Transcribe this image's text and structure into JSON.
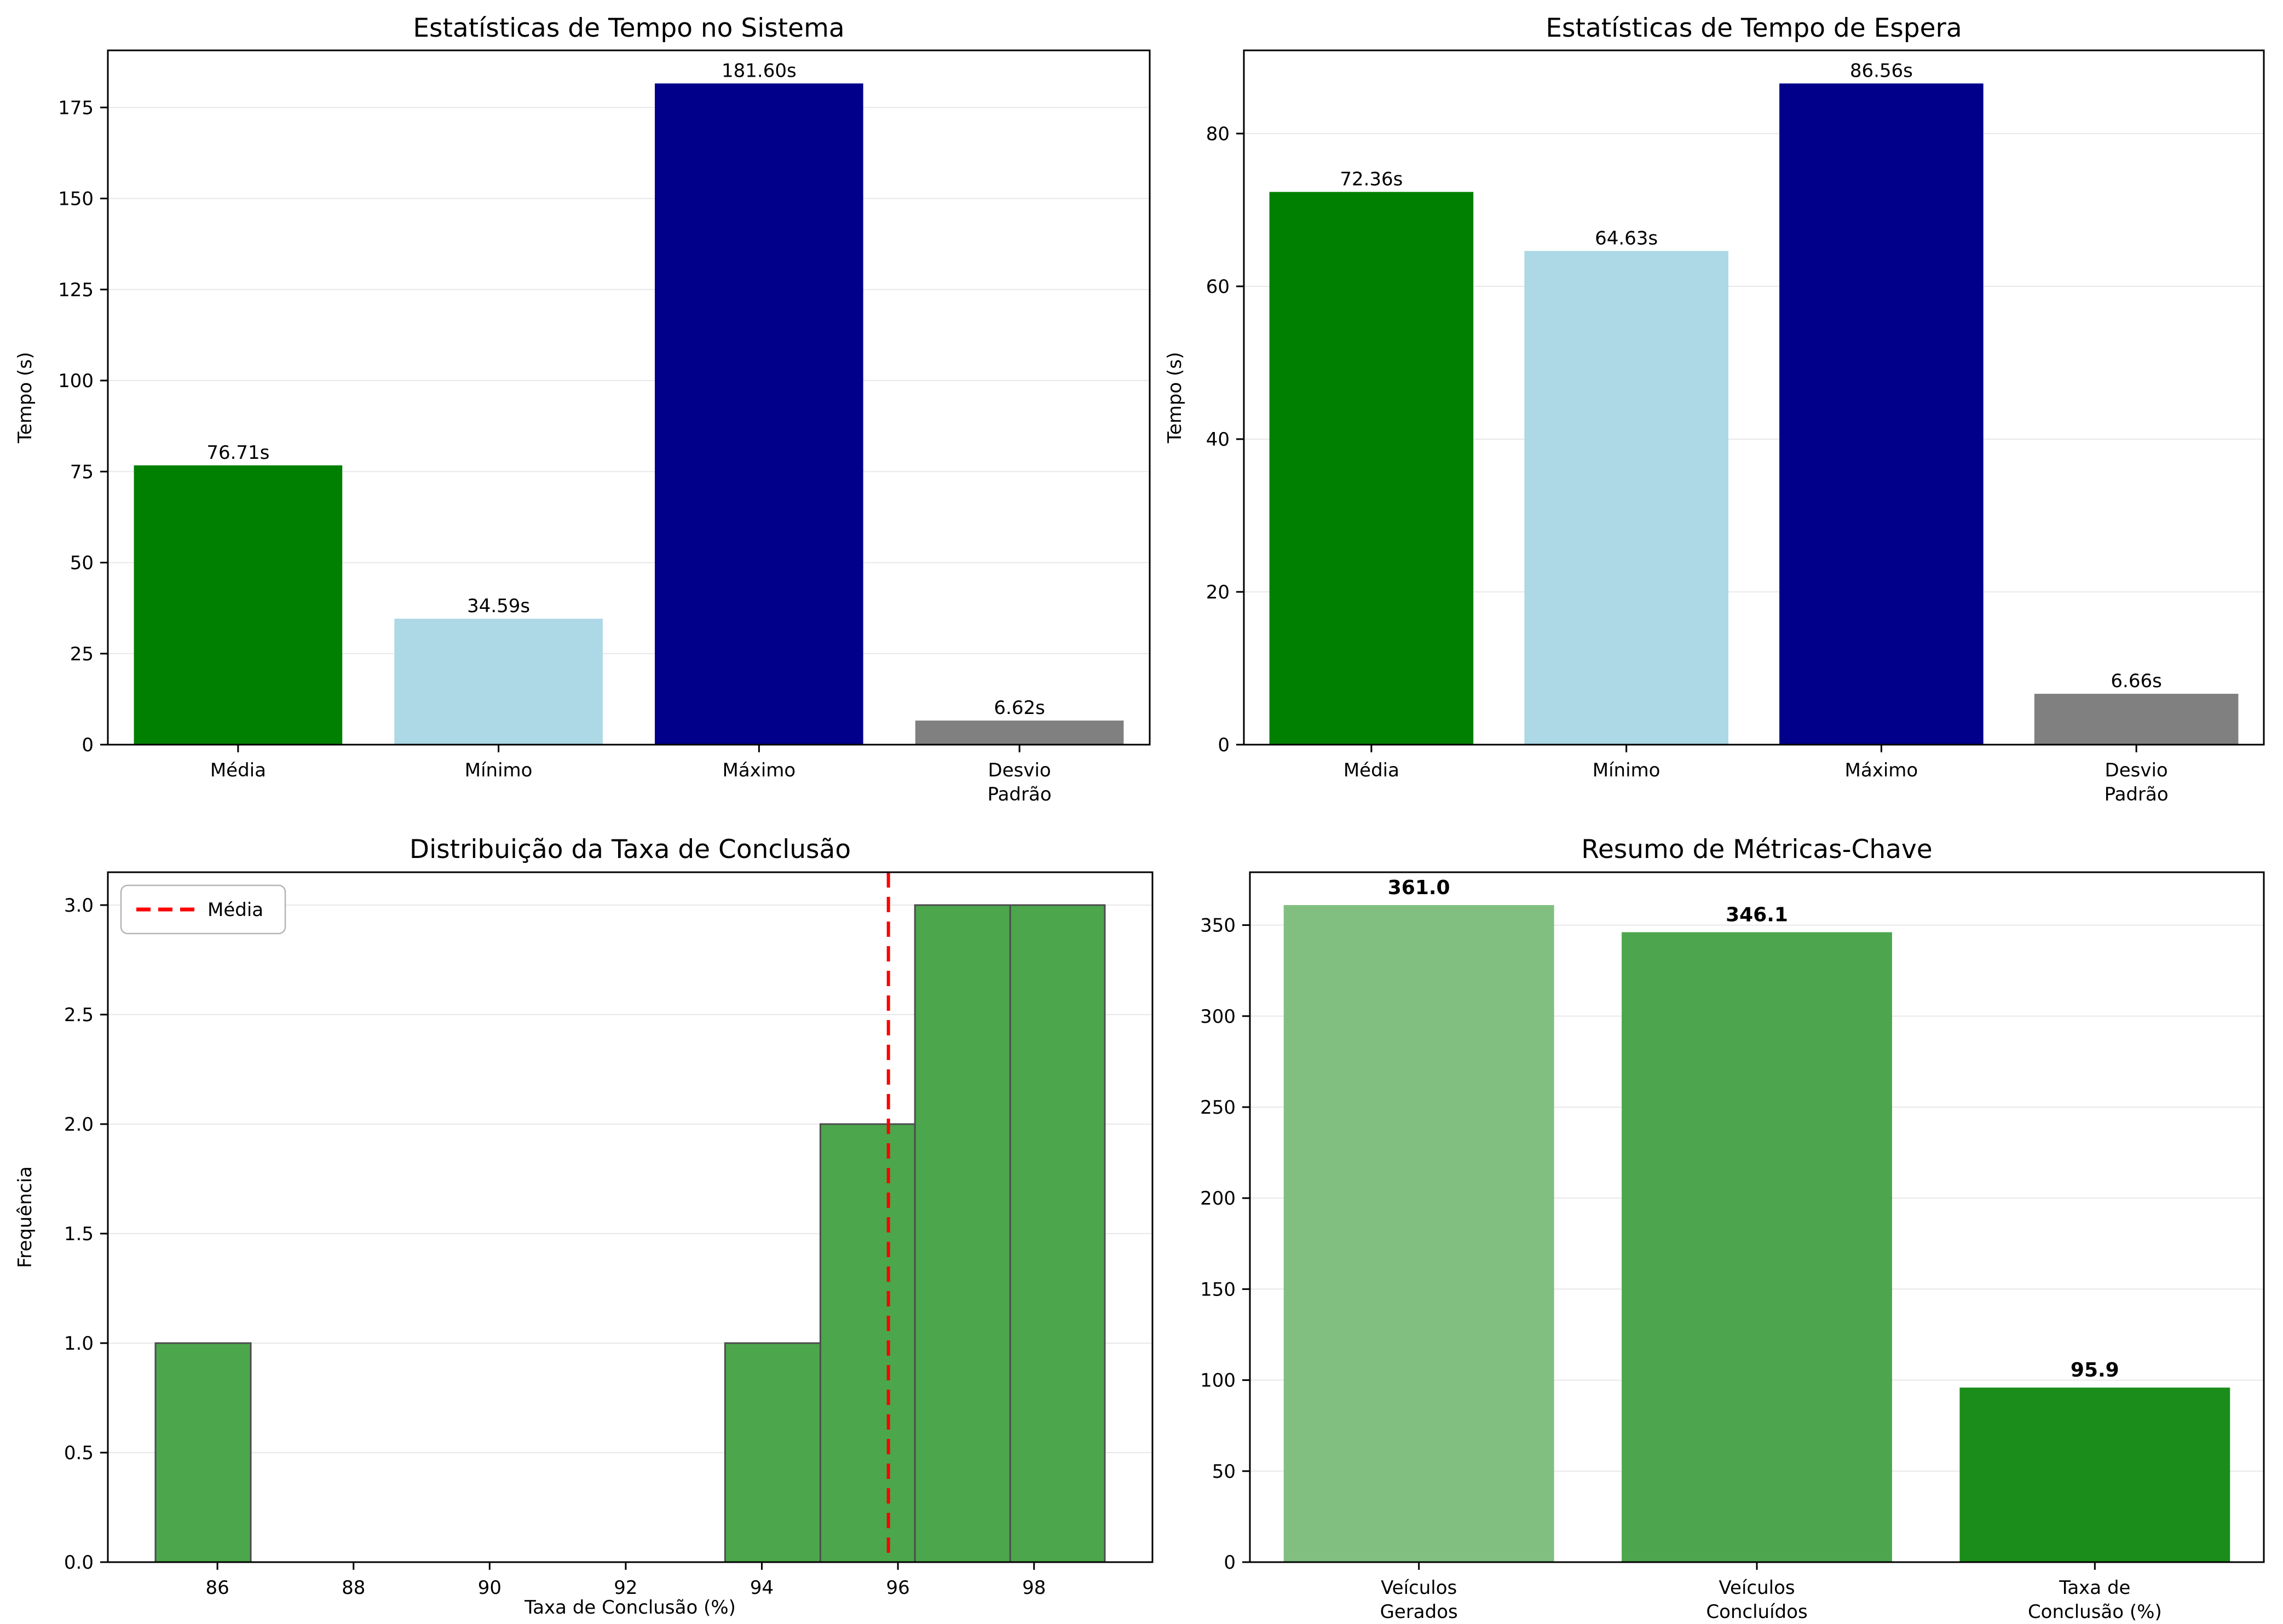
{
  "figure": {
    "background": "#FFFFFF",
    "text_color": "#000000",
    "grid_color": "#E8E8E8",
    "spine_color": "#000000"
  },
  "chart_data": [
    {
      "type": "bar",
      "title": "Estatísticas de Tempo no Sistema",
      "ylabel": "Tempo (s)",
      "categories": [
        "Média",
        "Mínimo",
        "Máximo",
        "Desvio\nPadrão"
      ],
      "values": [
        76.71,
        34.59,
        181.6,
        6.62
      ],
      "value_labels": [
        "76.71s",
        "34.59s",
        "181.60s",
        "6.62s"
      ],
      "bar_colors": [
        "#008000",
        "#ADD8E6",
        "#00008B",
        "#808080"
      ],
      "yticks": [
        0,
        25,
        50,
        75,
        100,
        125,
        150,
        175
      ],
      "ytick_labels": [
        "0",
        "25",
        "50",
        "75",
        "100",
        "125",
        "150",
        "175"
      ],
      "ylim": [
        0,
        190.68
      ],
      "grid": true,
      "value_label_bold": false,
      "legend": null
    },
    {
      "type": "bar",
      "title": "Estatísticas de Tempo de Espera",
      "ylabel": "Tempo (s)",
      "categories": [
        "Média",
        "Mínimo",
        "Máximo",
        "Desvio\nPadrão"
      ],
      "values": [
        72.36,
        64.63,
        86.56,
        6.66
      ],
      "value_labels": [
        "72.36s",
        "64.63s",
        "86.56s",
        "6.66s"
      ],
      "bar_colors": [
        "#008000",
        "#ADD8E6",
        "#00008B",
        "#808080"
      ],
      "yticks": [
        0,
        20,
        40,
        60,
        80
      ],
      "ytick_labels": [
        "0",
        "20",
        "40",
        "60",
        "80"
      ],
      "ylim": [
        0,
        90.89
      ],
      "grid": true,
      "value_label_bold": false,
      "legend": null
    },
    {
      "type": "histogram",
      "title": "Distribuição da Taxa de Conclusão",
      "xlabel": "Taxa de Conclusão (%)",
      "ylabel": "Frequência",
      "bin_edges": [
        85.09,
        86.49,
        87.88,
        89.28,
        90.67,
        92.07,
        93.46,
        94.86,
        96.25,
        97.65,
        99.04
      ],
      "counts": [
        1,
        0,
        0,
        0,
        0,
        0,
        1,
        2,
        3,
        3
      ],
      "bar_color": "#4CA64C",
      "bar_edge_color": "#4D4D4D",
      "mean_line": {
        "value": 95.86,
        "color": "#FF0000",
        "legend_label": "Média"
      },
      "xticks": [
        86,
        88,
        90,
        92,
        94,
        96,
        98
      ],
      "xtick_labels": [
        "86",
        "88",
        "90",
        "92",
        "94",
        "96",
        "98"
      ],
      "yticks": [
        0,
        0.5,
        1,
        1.5,
        2,
        2.5,
        3
      ],
      "ytick_labels": [
        "0.0",
        "0.5",
        "1.0",
        "1.5",
        "2.0",
        "2.5",
        "3.0"
      ],
      "xlim": [
        84.39,
        99.74
      ],
      "ylim": [
        0,
        3.15
      ],
      "grid": true
    },
    {
      "type": "bar",
      "title": "Resumo de Métricas-Chave",
      "ylabel": "",
      "categories": [
        "Veículos\nGerados",
        "Veículos\nConcluídos",
        "Taxa de\nConclusão (%)"
      ],
      "values": [
        361.0,
        346.1,
        95.9
      ],
      "value_labels": [
        "361.0",
        "346.1",
        "95.9"
      ],
      "bar_colors": [
        "#80BF80",
        "#4DA64D",
        "#1A8D1A"
      ],
      "yticks": [
        0,
        50,
        100,
        150,
        200,
        250,
        300,
        350
      ],
      "ytick_labels": [
        "0",
        "50",
        "100",
        "150",
        "200",
        "250",
        "300",
        "350"
      ],
      "ylim": [
        0,
        379.05
      ],
      "grid": true,
      "value_label_bold": true,
      "legend": null
    }
  ]
}
